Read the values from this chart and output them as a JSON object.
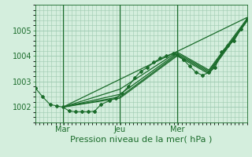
{
  "title": "Pression niveau de la mer( hPa )",
  "bg_color": "#d4eedd",
  "grid_color": "#9dc9b0",
  "line_color": "#1a6b2a",
  "ylim": [
    1001.4,
    1005.9
  ],
  "yticks": [
    1002,
    1003,
    1004,
    1005
  ],
  "xtick_labels": [
    "Mar",
    "Jeu",
    "Mer"
  ],
  "xtick_positions": [
    0.13,
    0.4,
    0.67
  ],
  "vline_positions": [
    0.13,
    0.4,
    0.67
  ],
  "series": [
    [
      0.0,
      1002.75,
      0.035,
      1002.4,
      0.07,
      1002.1,
      0.1,
      1002.05,
      0.13,
      1002.0,
      0.16,
      1001.85,
      0.19,
      1001.82,
      0.22,
      1001.82,
      0.25,
      1001.82,
      0.28,
      1001.84,
      0.31,
      1002.1,
      0.35,
      1002.25,
      0.38,
      1002.35,
      0.41,
      1002.55,
      0.44,
      1002.8,
      0.47,
      1003.15,
      0.5,
      1003.4,
      0.53,
      1003.55,
      0.56,
      1003.75,
      0.59,
      1003.9,
      0.62,
      1004.0,
      0.65,
      1004.1,
      0.67,
      1004.05,
      0.7,
      1003.85,
      0.73,
      1003.6,
      0.76,
      1003.35,
      0.79,
      1003.25,
      0.82,
      1003.35,
      0.85,
      1003.55,
      0.88,
      1004.15,
      0.91,
      1004.4,
      0.94,
      1004.6,
      0.97,
      1005.05,
      1.0,
      1005.45
    ],
    [
      0.13,
      1002.0,
      0.4,
      1002.35,
      0.67,
      1004.0,
      0.82,
      1003.3,
      1.0,
      1005.35
    ],
    [
      0.13,
      1002.0,
      0.4,
      1002.4,
      0.67,
      1004.05,
      0.82,
      1003.35,
      1.0,
      1005.38
    ],
    [
      0.13,
      1002.0,
      0.4,
      1002.5,
      0.67,
      1004.1,
      0.82,
      1003.4,
      1.0,
      1005.4
    ],
    [
      0.13,
      1002.0,
      0.4,
      1002.7,
      0.67,
      1004.15,
      0.82,
      1003.45,
      1.0,
      1005.45
    ],
    [
      0.13,
      1002.0,
      1.0,
      1005.5
    ]
  ],
  "title_fontsize": 8,
  "tick_fontsize": 7,
  "xlabel_fontsize": 8
}
